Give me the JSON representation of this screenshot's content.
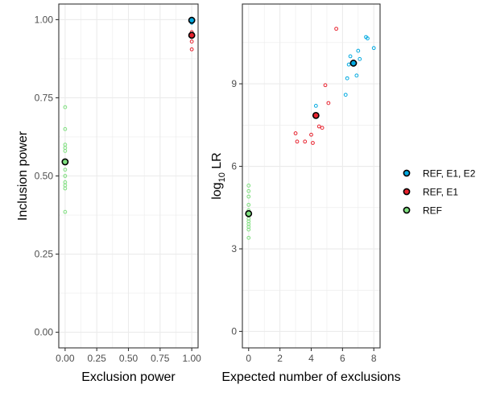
{
  "colors": {
    "REF, E1, E2": "#00A9E0",
    "REF, E1": "#E8222E",
    "REF": "#7FE07F",
    "grid": "#EBEBEB",
    "panel_border": "#333333"
  },
  "legend": {
    "placement": "right",
    "items": [
      {
        "label": "REF, E1, E2",
        "key": "REF, E1, E2"
      },
      {
        "label": "REF, E1",
        "key": "REF, E1"
      },
      {
        "label": "REF",
        "key": "REF"
      }
    ]
  },
  "chart_data": [
    {
      "type": "scatter",
      "xlabel": "Exclusion power",
      "ylabel": "Inclusion power",
      "xlim": [
        -0.05,
        1.05
      ],
      "ylim": [
        -0.05,
        1.05
      ],
      "xticks": [
        "0.00",
        "0.25",
        "0.50",
        "0.75",
        "1.00"
      ],
      "yticks": [
        "0.00",
        "0.25",
        "0.50",
        "0.75",
        "1.00"
      ],
      "grid": true,
      "series": [
        {
          "name": "REF",
          "key": "REF",
          "points": [
            [
              0,
              0.72
            ],
            [
              0,
              0.65
            ],
            [
              0,
              0.6
            ],
            [
              0,
              0.59
            ],
            [
              0,
              0.58
            ],
            [
              0,
              0.55
            ],
            [
              0,
              0.52
            ],
            [
              0,
              0.5
            ],
            [
              0,
              0.48
            ],
            [
              0,
              0.47
            ],
            [
              0,
              0.46
            ],
            [
              0,
              0.385
            ]
          ],
          "mean": [
            0,
            0.545
          ]
        },
        {
          "name": "REF, E1",
          "key": "REF, E1",
          "points": [
            [
              1,
              0.96
            ],
            [
              1,
              0.945
            ],
            [
              1,
              0.93
            ],
            [
              1,
              0.905
            ]
          ],
          "mean": [
            1,
            0.95
          ]
        },
        {
          "name": "REF, E1, E2",
          "key": "REF, E1, E2",
          "points": [
            [
              1,
              1.0
            ],
            [
              1,
              0.995
            ],
            [
              1,
              0.99
            ]
          ],
          "mean": [
            1,
            0.998
          ]
        }
      ]
    },
    {
      "type": "scatter",
      "xlabel": "Expected number of exclusions",
      "ylabel_main": "log",
      "ylabel_sub": "10",
      "ylabel_rest": " LR",
      "xlim": [
        -0.4,
        8.4
      ],
      "ylim": [
        -0.6,
        11.9
      ],
      "xticks": [
        "0",
        "2",
        "4",
        "6",
        "8"
      ],
      "yticks": [
        "0",
        "3",
        "6",
        "9"
      ],
      "grid": true,
      "series": [
        {
          "name": "REF",
          "key": "REF",
          "points": [
            [
              0,
              5.3
            ],
            [
              0,
              5.1
            ],
            [
              0,
              4.9
            ],
            [
              0,
              4.6
            ],
            [
              0,
              4.4
            ],
            [
              0,
              4.3
            ],
            [
              0,
              4.1
            ],
            [
              0,
              4.0
            ],
            [
              0,
              3.9
            ],
            [
              0,
              3.8
            ],
            [
              0,
              3.7
            ],
            [
              0,
              3.4
            ]
          ],
          "mean": [
            0,
            4.28
          ]
        },
        {
          "name": "REF, E1",
          "key": "REF, E1",
          "points": [
            [
              3,
              7.2
            ],
            [
              3.1,
              6.9
            ],
            [
              3.6,
              6.9
            ],
            [
              4,
              7.15
            ],
            [
              4.1,
              6.85
            ],
            [
              4.5,
              7.45
            ],
            [
              4.7,
              7.4
            ],
            [
              4.9,
              8.95
            ],
            [
              5.1,
              8.3
            ],
            [
              5.6,
              11.0
            ]
          ],
          "mean": [
            4.3,
            7.85
          ]
        },
        {
          "name": "REF, E1, E2",
          "key": "REF, E1, E2",
          "points": [
            [
              4.3,
              8.2
            ],
            [
              6.2,
              8.6
            ],
            [
              6.3,
              9.2
            ],
            [
              6.4,
              9.7
            ],
            [
              6.5,
              10.0
            ],
            [
              6.9,
              9.3
            ],
            [
              7.0,
              10.2
            ],
            [
              7.1,
              9.9
            ],
            [
              7.5,
              10.7
            ],
            [
              7.6,
              10.65
            ],
            [
              8.0,
              10.3
            ]
          ],
          "mean": [
            6.7,
            9.75
          ]
        }
      ]
    }
  ]
}
